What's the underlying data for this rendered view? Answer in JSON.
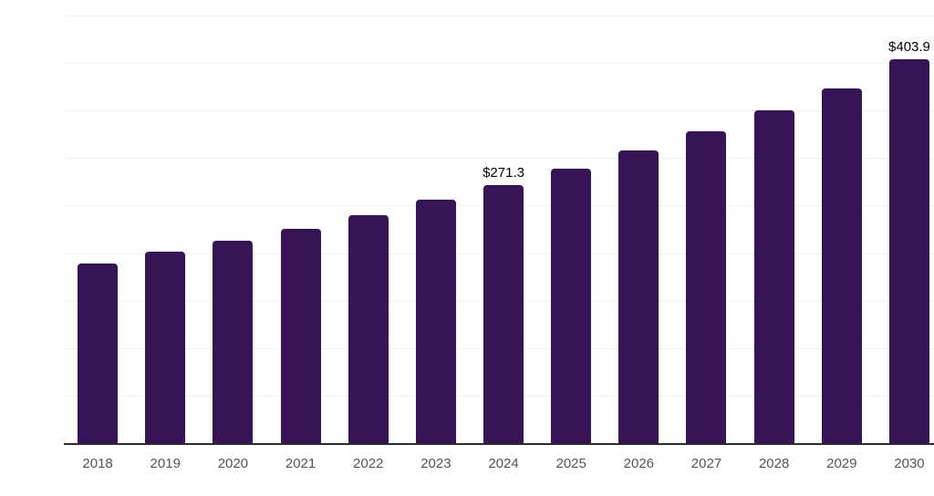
{
  "chart_data": {
    "type": "bar",
    "title": "",
    "xlabel": "",
    "ylabel": "",
    "categories": [
      "2018",
      "2019",
      "2020",
      "2021",
      "2022",
      "2023",
      "2024",
      "2025",
      "2026",
      "2027",
      "2028",
      "2029",
      "2030"
    ],
    "values": [
      189.1,
      201.2,
      213.1,
      225.7,
      239.6,
      255.9,
      271.3,
      289.1,
      308.2,
      328.4,
      350.7,
      373.7,
      403.9
    ],
    "data_labels": {
      "2024": "$271.3",
      "2030": "$403.9"
    },
    "ylim": [
      0,
      450
    ],
    "grid_step": 50,
    "grid": "horizontal",
    "legend_position": "none",
    "y_axis_ticks_visible": false
  },
  "colors": {
    "bar": "#371455",
    "gridline": "#efefef",
    "axis_line": "#2b2b2b",
    "tick_label": "#545454",
    "data_label": "#000000",
    "background": "#ffffff"
  }
}
